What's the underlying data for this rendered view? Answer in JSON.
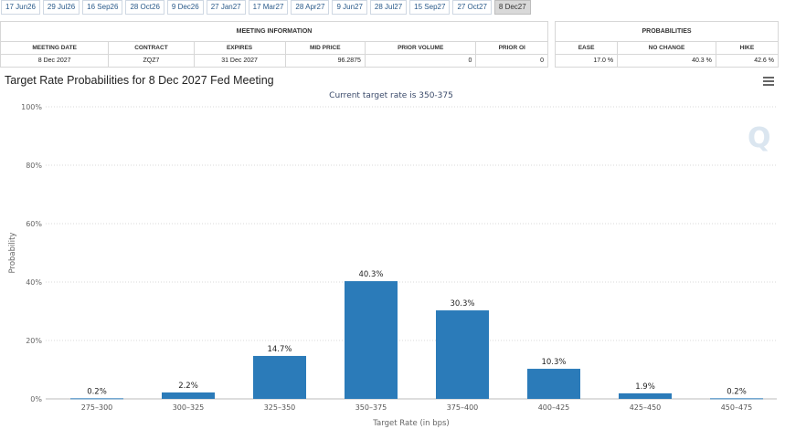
{
  "tabs": [
    "17 Jun26",
    "29 Jul26",
    "16 Sep26",
    "28 Oct26",
    "9 Dec26",
    "27 Jan27",
    "17 Mar27",
    "28 Apr27",
    "9 Jun27",
    "28 Jul27",
    "15 Sep27",
    "27 Oct27",
    "8 Dec27"
  ],
  "active_tab": "8 Dec27",
  "meeting_info": {
    "group_title": "MEETING INFORMATION",
    "headers": [
      "MEETING DATE",
      "CONTRACT",
      "EXPIRES",
      "MID PRICE",
      "PRIOR VOLUME",
      "PRIOR OI"
    ],
    "row": [
      "8 Dec 2027",
      "ZQZ7",
      "31 Dec 2027",
      "96.2875",
      "0",
      "0"
    ]
  },
  "probabilities": {
    "group_title": "PROBABILITIES",
    "headers": [
      "EASE",
      "NO CHANGE",
      "HIKE"
    ],
    "row": [
      "17.0 %",
      "40.3 %",
      "42.6 %"
    ]
  },
  "chart_title": "Target Rate Probabilities for 8 Dec 2027 Fed Meeting",
  "colors": {
    "bar": "#2b7bb9",
    "grid": "#d9d9d9",
    "active_tab": "#d9d9d9"
  },
  "icons": [
    "menu-icon",
    "watermark-q-logo"
  ],
  "chart_data": {
    "type": "bar",
    "subtitle": "Current target rate is 350-375",
    "xlabel": "Target Rate (in bps)",
    "ylabel": "Probability",
    "categories": [
      "275-300",
      "300-325",
      "325-350",
      "350-375",
      "375-400",
      "400-425",
      "425-450",
      "450-475"
    ],
    "values": [
      0.2,
      2.2,
      14.7,
      40.3,
      30.3,
      10.3,
      1.9,
      0.2
    ],
    "value_labels": [
      "0.2%",
      "2.2%",
      "14.7%",
      "40.3%",
      "30.3%",
      "10.3%",
      "1.9%",
      "0.2%"
    ],
    "yticks": [
      "0%",
      "20%",
      "40%",
      "60%",
      "80%",
      "100%"
    ],
    "ylim": [
      0,
      100
    ],
    "grid": true
  }
}
